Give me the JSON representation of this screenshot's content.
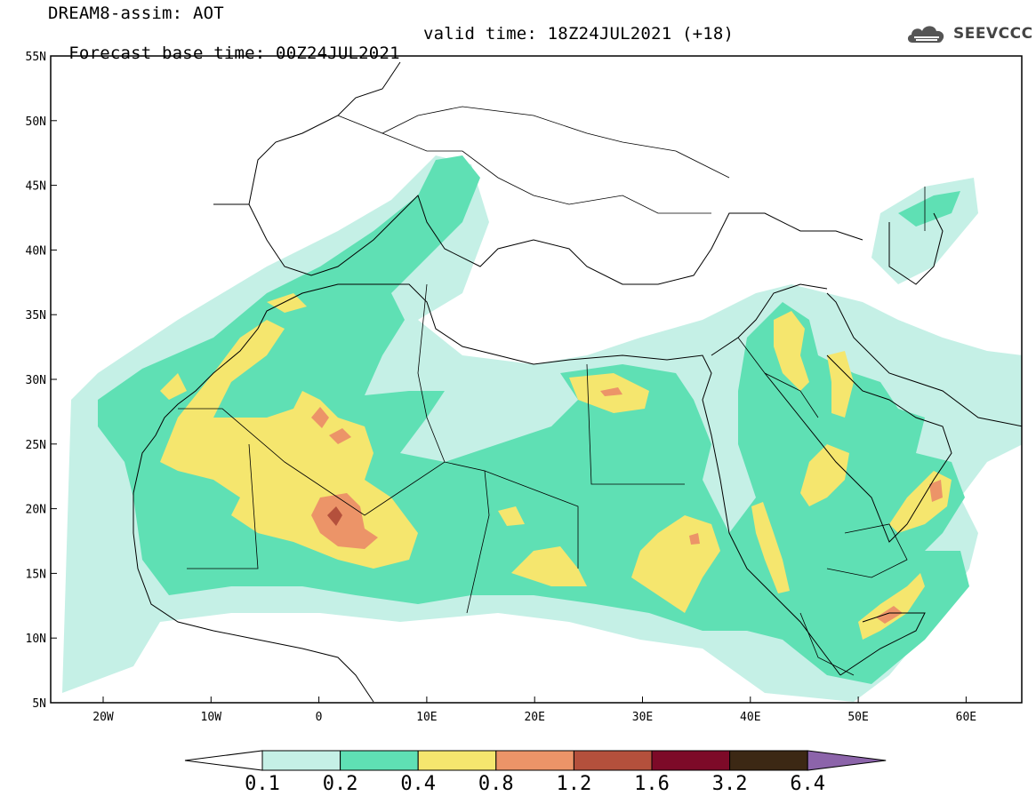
{
  "header": {
    "model_line": "DREAM8-assim: AOT",
    "base_time": "Forecast base time: 00Z24JUL2021",
    "valid_time": "valid time: 18Z24JUL2021 (+18)"
  },
  "logo": {
    "text": "SEEVCCC",
    "icon": "cloud-icon"
  },
  "axes": {
    "lat_labels": [
      "55N",
      "50N",
      "45N",
      "40N",
      "35N",
      "30N",
      "25N",
      "20N",
      "15N",
      "10N",
      "5N"
    ],
    "lon_labels": [
      "20W",
      "10W",
      "0",
      "10E",
      "20E",
      "30E",
      "40E",
      "50E",
      "60E"
    ]
  },
  "colorbar": {
    "labels": [
      "0.1",
      "0.2",
      "0.4",
      "0.8",
      "1.2",
      "1.6",
      "3.2",
      "6.4"
    ],
    "colors": [
      "#ffffff",
      "#c5f0e6",
      "#5fe0b4",
      "#f5e66e",
      "#ec9468",
      "#b4503c",
      "#7d0a28",
      "#3c2814",
      "#8c64aa"
    ]
  },
  "map_colors": {
    "c1": "#c5f0e6",
    "c2": "#5fe0b4",
    "c3": "#f5e66e",
    "c4": "#ec9468",
    "c5": "#b4503c"
  }
}
